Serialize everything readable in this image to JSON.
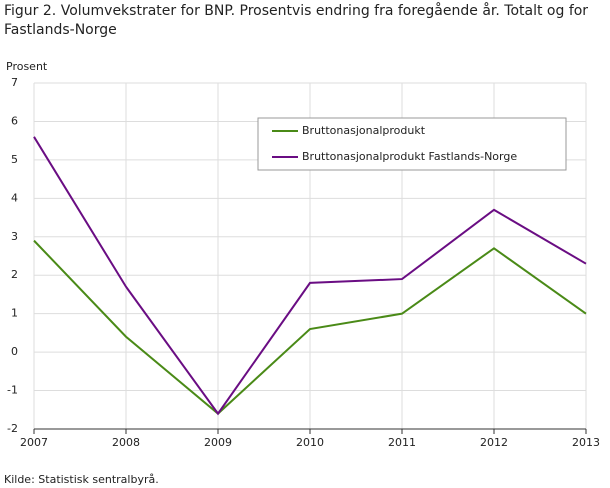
{
  "chart_data": {
    "type": "line",
    "title": "Figur 2.  Volumvekstrater for BNP. Prosentvis endring fra foregående år. Totalt og for Fastlands-Norge",
    "y_label": "Prosent",
    "source": "Kilde: Statistisk sentralbyrå.",
    "x": [
      2007,
      2008,
      2009,
      2010,
      2011,
      2012,
      2013
    ],
    "xlim": [
      2007,
      2013
    ],
    "xticks": [
      2007,
      2008,
      2009,
      2010,
      2011,
      2012,
      2013
    ],
    "ylim": [
      -2,
      7
    ],
    "yticks": [
      -2,
      -1,
      0,
      1,
      2,
      3,
      4,
      5,
      6,
      7
    ],
    "grid": true,
    "legend": "top-right",
    "series": [
      {
        "name": "Bruttonasjonalprodukt",
        "color": "#4a8a17",
        "values": [
          2.9,
          0.4,
          -1.6,
          0.6,
          1.0,
          2.7,
          1.0
        ]
      },
      {
        "name": "Bruttonasjonalprodukt Fastlands-Norge",
        "color": "#6a0d83",
        "values": [
          5.6,
          1.7,
          -1.6,
          1.8,
          1.9,
          3.7,
          2.3
        ]
      }
    ]
  }
}
